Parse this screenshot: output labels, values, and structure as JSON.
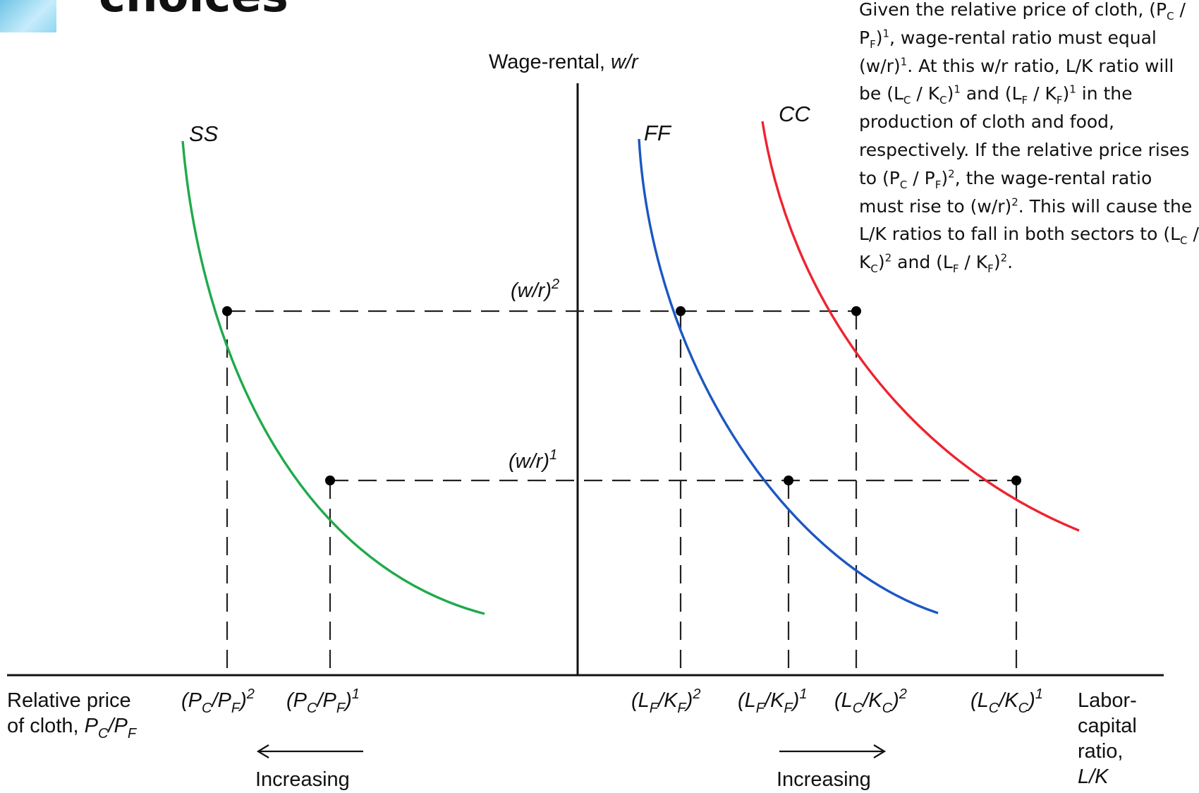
{
  "header": {
    "title_fragment": "choices"
  },
  "axes": {
    "y_label": "Wage-rental, w/r",
    "left_x_label_line1": "Relative price",
    "left_x_label_line2": "of cloth, P",
    "right_x_label_line1": "Labor-",
    "right_x_label_line2": "capital",
    "right_x_label_line3": "ratio,",
    "right_x_label_line4": "L/K"
  },
  "curves": {
    "ss": "SS",
    "ff": "FF",
    "cc": "CC"
  },
  "levels": {
    "wr1": "(w/r)",
    "wr2": "(w/r)"
  },
  "x_labels": {
    "pcpf2": "(P",
    "pcpf1": "(P",
    "lfkf2": "(L",
    "lfkf1": "(L",
    "lckc2": "(L",
    "lckc1": "(L"
  },
  "arrows": {
    "left": "Increasing",
    "right": "Increasing"
  },
  "note": {
    "text": "Given the relative price of cloth, (Pc / PF)1, wage-rental ratio must equal (w/r)1. At this w/r ratio, L/K ratio will be (Lc / Kc)1 and (LF / KF)1 in the production of cloth and food, respectively. If the relative price rises to (Pc / PF)2, the wage-rental ratio must rise to (w/r)2. This will cause the L/K ratios to fall in both sectors to (Lc / Kc)2 and (LF / KF)2."
  },
  "colors": {
    "ss": "#1faa4b",
    "ff": "#1c57c2",
    "cc": "#ee2330"
  }
}
